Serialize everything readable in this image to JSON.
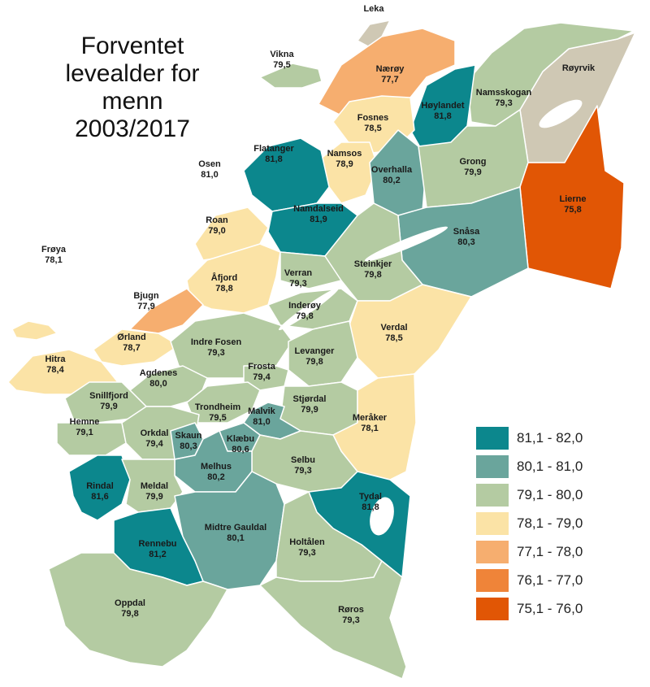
{
  "title": "Forventet\nlevealder for\nmenn\n2003/2017",
  "colors": {
    "c1": "#0c878d",
    "c2": "#6aa59c",
    "c3": "#b4cba2",
    "c4": "#fbe3a6",
    "c5": "#f6ae6f",
    "c6": "#ef8439",
    "c7": "#e15605",
    "grey": "#cfc8b4",
    "lake": "#ffffff",
    "border": "#ffffff"
  },
  "legend": [
    {
      "label": "81,1 - 82,0",
      "color_key": "c1"
    },
    {
      "label": "80,1 - 81,0",
      "color_key": "c2"
    },
    {
      "label": "79,1 - 80,0",
      "color_key": "c3"
    },
    {
      "label": "78,1 - 79,0",
      "color_key": "c4"
    },
    {
      "label": "77,1 - 78,0",
      "color_key": "c5"
    },
    {
      "label": "76,1 - 77,0",
      "color_key": "c6"
    },
    {
      "label": "75,1 - 76,0",
      "color_key": "c7"
    }
  ],
  "municipalities": [
    {
      "id": "leka",
      "name": "Leka",
      "value": ""
    },
    {
      "id": "vikna",
      "name": "Vikna",
      "value": "79,5"
    },
    {
      "id": "naeroy",
      "name": "Nærøy",
      "value": "77,7"
    },
    {
      "id": "royrvik",
      "name": "Røyrvik",
      "value": ""
    },
    {
      "id": "namsskogan",
      "name": "Namsskogan",
      "value": "79,3"
    },
    {
      "id": "hoylandet",
      "name": "Høylandet",
      "value": "81,8"
    },
    {
      "id": "fosnes",
      "name": "Fosnes",
      "value": "78,5"
    },
    {
      "id": "namsos",
      "name": "Namsos",
      "value": "78,9"
    },
    {
      "id": "flatanger",
      "name": "Flatanger",
      "value": "81,8"
    },
    {
      "id": "osen",
      "name": "Osen",
      "value": "81,0"
    },
    {
      "id": "overhalla",
      "name": "Overhalla",
      "value": "80,2"
    },
    {
      "id": "grong",
      "name": "Grong",
      "value": "79,9"
    },
    {
      "id": "lierne",
      "name": "Lierne",
      "value": "75,8"
    },
    {
      "id": "namdalseid",
      "name": "Namdalseid",
      "value": "81,9"
    },
    {
      "id": "snasa",
      "name": "Snåsa",
      "value": "80,3"
    },
    {
      "id": "roan",
      "name": "Roan",
      "value": "79,0"
    },
    {
      "id": "froya",
      "name": "Frøya",
      "value": "78,1"
    },
    {
      "id": "afjord",
      "name": "Åfjord",
      "value": "78,8"
    },
    {
      "id": "verran",
      "name": "Verran",
      "value": "79,3"
    },
    {
      "id": "steinkjer",
      "name": "Steinkjer",
      "value": "79,8"
    },
    {
      "id": "bjugn",
      "name": "Bjugn",
      "value": "77,9"
    },
    {
      "id": "inderoy",
      "name": "Inderøy",
      "value": "79,8"
    },
    {
      "id": "verdal",
      "name": "Verdal",
      "value": "78,5"
    },
    {
      "id": "orland",
      "name": "Ørland",
      "value": "78,7"
    },
    {
      "id": "hitra",
      "name": "Hitra",
      "value": "78,4"
    },
    {
      "id": "indre_fosen",
      "name": "Indre Fosen",
      "value": "79,3"
    },
    {
      "id": "levanger",
      "name": "Levanger",
      "value": "79,8"
    },
    {
      "id": "frosta",
      "name": "Frosta",
      "value": "79,4"
    },
    {
      "id": "agdenes",
      "name": "Agdenes",
      "value": "80,0"
    },
    {
      "id": "snillfjord",
      "name": "Snillfjord",
      "value": "79,9"
    },
    {
      "id": "trondheim",
      "name": "Trondheim",
      "value": "79,5"
    },
    {
      "id": "stjordal",
      "name": "Stjørdal",
      "value": "79,9"
    },
    {
      "id": "meraker",
      "name": "Meråker",
      "value": "78,1"
    },
    {
      "id": "hemne",
      "name": "Hemne",
      "value": "79,1"
    },
    {
      "id": "malvik",
      "name": "Malvik",
      "value": "81,0"
    },
    {
      "id": "orkdal",
      "name": "Orkdal",
      "value": "79,4"
    },
    {
      "id": "skaun",
      "name": "Skaun",
      "value": "80,3"
    },
    {
      "id": "klaebu",
      "name": "Klæbu",
      "value": "80,6"
    },
    {
      "id": "selbu",
      "name": "Selbu",
      "value": "79,3"
    },
    {
      "id": "melhus",
      "name": "Melhus",
      "value": "80,2"
    },
    {
      "id": "rindal",
      "name": "Rindal",
      "value": "81,6"
    },
    {
      "id": "meldal",
      "name": "Meldal",
      "value": "79,9"
    },
    {
      "id": "tydal",
      "name": "Tydal",
      "value": "81,8"
    },
    {
      "id": "midtre_gauldal",
      "name": "Midtre Gauldal",
      "value": "80,1"
    },
    {
      "id": "rennebu",
      "name": "Rennebu",
      "value": "81,2"
    },
    {
      "id": "holtalen",
      "name": "Holtålen",
      "value": "79,3"
    },
    {
      "id": "oppdal",
      "name": "Oppdal",
      "value": "79,8"
    },
    {
      "id": "roros",
      "name": "Røros",
      "value": "79,3"
    }
  ]
}
